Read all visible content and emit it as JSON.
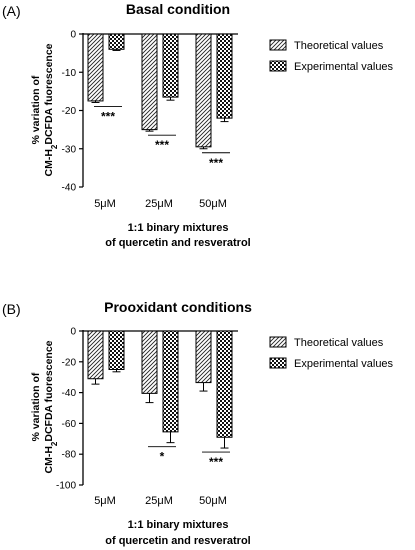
{
  "chart_data": [
    {
      "type": "bar",
      "panel_label": "(A)",
      "title": "Basal condition",
      "ylabel_line1": "% variation of",
      "ylabel_line2_prefix": "CM-H",
      "ylabel_line2_sub": "2",
      "ylabel_line2_suffix": "DCFDA fuorescence",
      "xlabel_line1": "1:1 binary mixtures",
      "xlabel_line2": "of quercetin and resveratrol",
      "categories": [
        "5μM",
        "25μM",
        "50μM"
      ],
      "ylim": [
        -40,
        0
      ],
      "yticks": [
        0,
        -10,
        -20,
        -30,
        -40
      ],
      "ytick_labels": [
        "0",
        "-10",
        "-20",
        "-30",
        "-40"
      ],
      "series": [
        {
          "name": "Theoretical values",
          "pattern": "hatch",
          "values": [
            -17.5,
            -25,
            -29.5
          ],
          "errors": [
            0.4,
            0.4,
            0.5
          ]
        },
        {
          "name": "Experimental values",
          "pattern": "checker",
          "values": [
            -4,
            -16.5,
            -22
          ],
          "errors": [
            0.3,
            0.8,
            0.9
          ]
        }
      ],
      "significance": [
        "***",
        "***",
        "***"
      ]
    },
    {
      "type": "bar",
      "panel_label": "(B)",
      "title": "Prooxidant conditions",
      "ylabel_line1": "% variation of",
      "ylabel_line2_prefix": "CM-H",
      "ylabel_line2_sub": "2",
      "ylabel_line2_suffix": "DCFDA fuorescence",
      "xlabel_line1": "1:1 binary mixtures",
      "xlabel_line2": "of quercetin and resveratrol",
      "categories": [
        "5μM",
        "25μM",
        "50μM"
      ],
      "ylim": [
        -100,
        0
      ],
      "yticks": [
        0,
        -20,
        -40,
        -60,
        -80,
        -100
      ],
      "ytick_labels": [
        "0",
        "-20",
        "-40",
        "-60",
        "-80",
        "-100"
      ],
      "series": [
        {
          "name": "Theoretical values",
          "pattern": "hatch",
          "values": [
            -31,
            -40.5,
            -33.5
          ],
          "errors": [
            3.5,
            6,
            5.5
          ]
        },
        {
          "name": "Experimental values",
          "pattern": "checker",
          "values": [
            -25,
            -65.5,
            -69
          ],
          "errors": [
            1.5,
            7,
            7
          ]
        }
      ],
      "significance": [
        "",
        "*",
        "***"
      ]
    }
  ]
}
